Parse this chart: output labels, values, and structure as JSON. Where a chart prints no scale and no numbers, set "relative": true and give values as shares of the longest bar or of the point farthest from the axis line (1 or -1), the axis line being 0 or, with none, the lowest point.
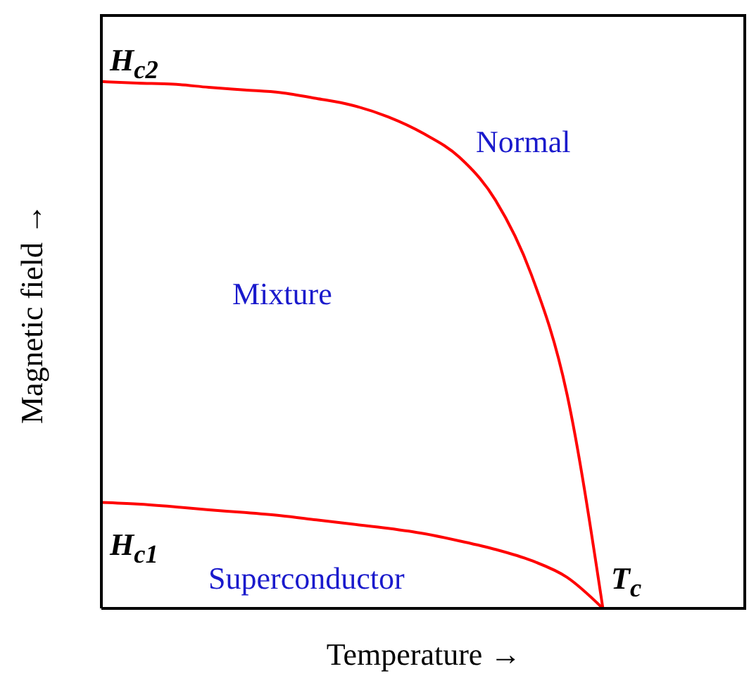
{
  "chart_data": {
    "type": "line",
    "relative": true,
    "xlabel": "Temperature →",
    "ylabel": "Magnetic field →",
    "categories": [
      null,
      null,
      null,
      null,
      null,
      null,
      null,
      null,
      null,
      null,
      null,
      null,
      null,
      null,
      null,
      null,
      null,
      null,
      null
    ],
    "series": [
      {
        "color": "#ff0000",
        "values": [
          1,
          0.997,
          0.995,
          0.989,
          0.984,
          0.979,
          0.968,
          0.955,
          0.933,
          0.901,
          0.856,
          0.775,
          0.634,
          0.406,
          0,
          null,
          null,
          null,
          null
        ]
      },
      {
        "color": "#ff0000",
        "values": [
          0.201,
          0.198,
          0.193,
          0.187,
          0.182,
          0.176,
          0.168,
          0.16,
          0.152,
          0.142,
          0.128,
          0.112,
          0.091,
          0.059,
          0,
          null,
          null,
          null,
          null
        ]
      }
    ],
    "annotations": [
      "H$_{c2}$",
      "Normal",
      "Mixture",
      "H$_{c1}$",
      "Superconductor",
      "T$_{c}$"
    ],
    "legend": false,
    "grid": false,
    "marker": "none",
    "line_style": "solid"
  }
}
